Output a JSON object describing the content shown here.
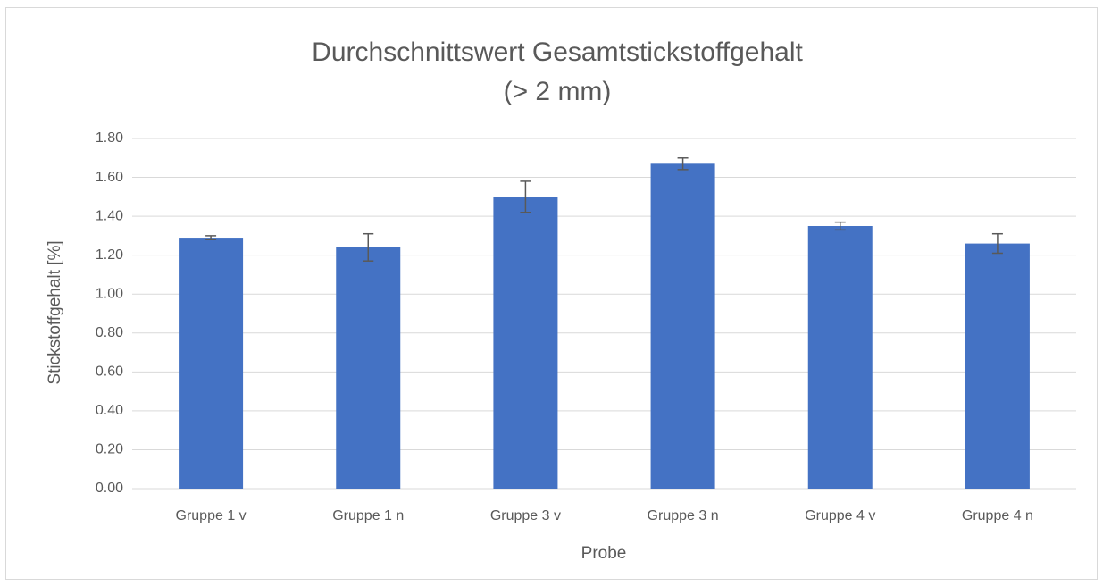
{
  "chart_data": {
    "type": "bar",
    "title": [
      "Durchschnittswert Gesamtstickstoffgehalt",
      "(> 2 mm)"
    ],
    "xlabel": "Probe",
    "ylabel": "Stickstoffgehalt [%]",
    "categories": [
      "Gruppe 1 v",
      "Gruppe 1 n",
      "Gruppe 3 v",
      "Gruppe 3 n",
      "Gruppe 4 v",
      "Gruppe 4 n"
    ],
    "values": [
      1.29,
      1.24,
      1.5,
      1.67,
      1.35,
      1.26
    ],
    "errors": [
      0.01,
      0.07,
      0.08,
      0.03,
      0.02,
      0.05
    ],
    "color": "#4472c4",
    "error_color": "#595959",
    "ylim": [
      0,
      1.8
    ],
    "yticks": [
      {
        "value": 0,
        "label": "0.00"
      },
      {
        "value": 0.2,
        "label": "0.20"
      },
      {
        "value": 0.4,
        "label": "0.40"
      },
      {
        "value": 0.6,
        "label": "0.60"
      },
      {
        "value": 0.8,
        "label": "0.80"
      },
      {
        "value": 1,
        "label": "1.00"
      },
      {
        "value": 1.2,
        "label": "1.20"
      },
      {
        "value": 1.4,
        "label": "1.40"
      },
      {
        "value": 1.6,
        "label": "1.60"
      },
      {
        "value": 1.8,
        "label": "1.80"
      }
    ],
    "grid": true
  }
}
